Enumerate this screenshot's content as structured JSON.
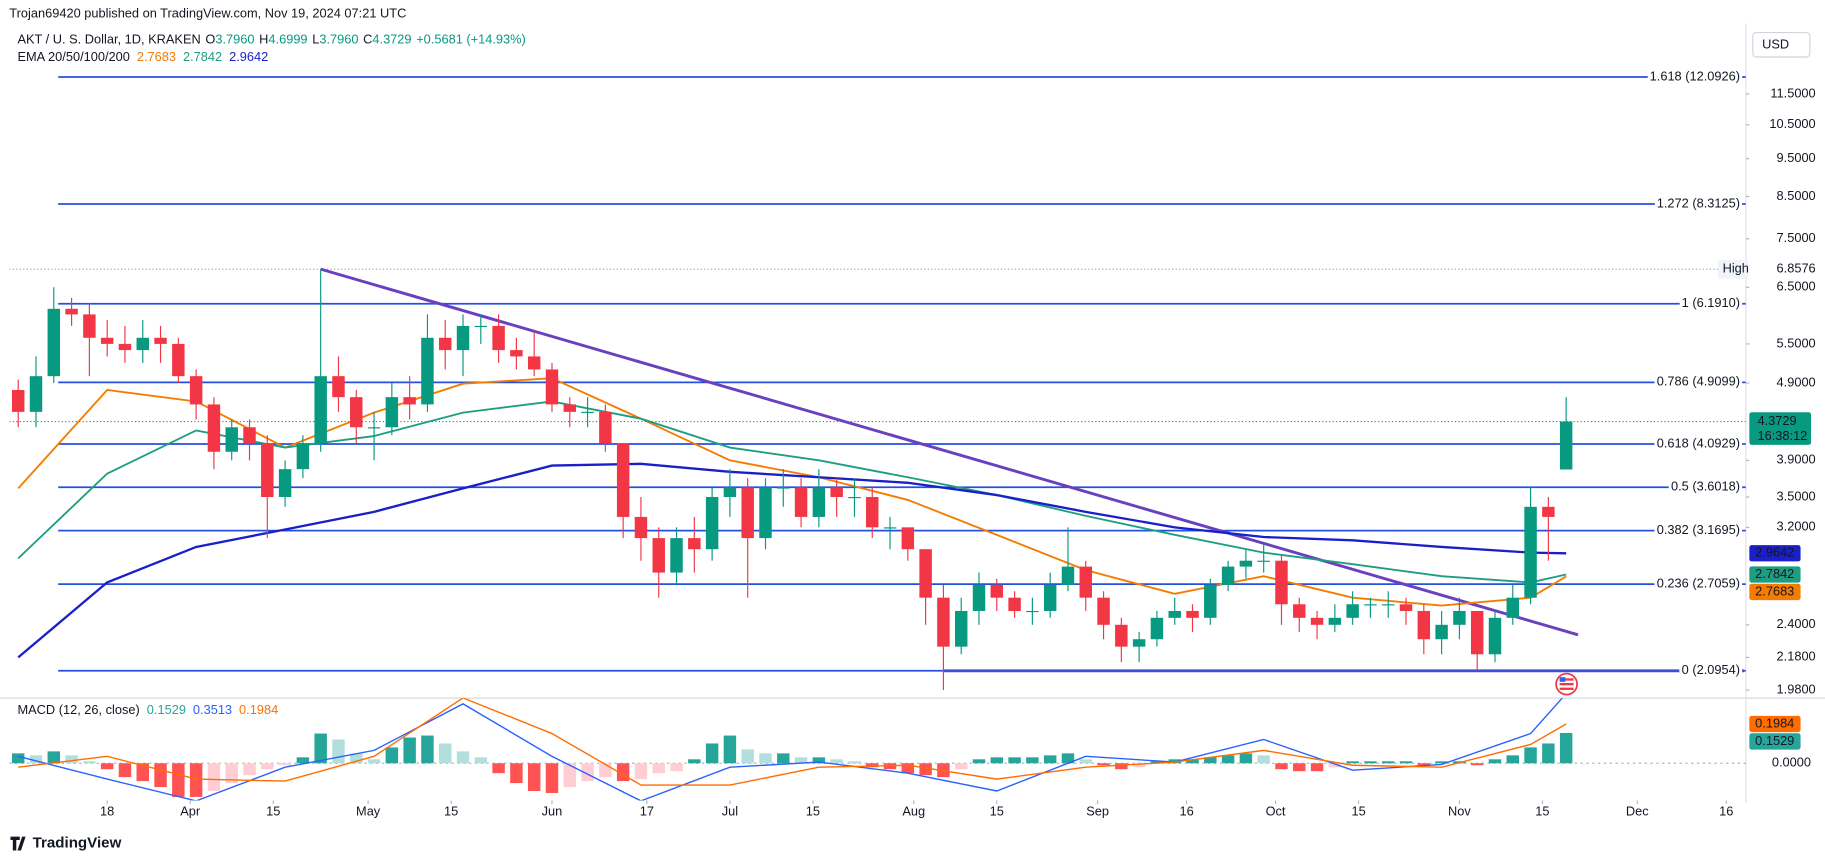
{
  "chart_data": {
    "type": "candlestick",
    "publisher": "Trojan69420 published on TradingView.com, Nov 19, 2024 07:21 UTC",
    "title": "AKT / U. S. Dollar, 1D, KRAKEN",
    "ohlc_legend": [
      {
        "key": "O",
        "value": "3.7960"
      },
      {
        "key": "H",
        "value": "4.6999"
      },
      {
        "key": "L",
        "value": "3.7960"
      },
      {
        "key": "C",
        "value": "4.3729"
      }
    ],
    "change": "+0.5681 (+14.93%)",
    "ema_label": "EMA 20/50/100/200",
    "currency": "USD",
    "countdown": "16:38:12",
    "high_label": "High",
    "high": 6.8576,
    "log_scale": true,
    "up_color": "#089981",
    "down_color": "#f23645",
    "xlim": [
      0.5,
      293.3
    ],
    "ylim": [
      1.933,
      13.93
    ],
    "xticks": [
      {
        "value": 17,
        "label": "18"
      },
      {
        "value": 31,
        "label": "Apr"
      },
      {
        "value": 45,
        "label": "15"
      },
      {
        "value": 61,
        "label": "May"
      },
      {
        "value": 75,
        "label": "15"
      },
      {
        "value": 92,
        "label": "Jun"
      },
      {
        "value": 108,
        "label": "17"
      },
      {
        "value": 122,
        "label": "Jul"
      },
      {
        "value": 136,
        "label": "15"
      },
      {
        "value": 153,
        "label": "Aug"
      },
      {
        "value": 167,
        "label": "15"
      },
      {
        "value": 184,
        "label": "Sep"
      },
      {
        "value": 199,
        "label": "16"
      },
      {
        "value": 214,
        "label": "Oct"
      },
      {
        "value": 228,
        "label": "15"
      },
      {
        "value": 245,
        "label": "Nov"
      },
      {
        "value": 259,
        "label": "15"
      },
      {
        "value": 275,
        "label": "Dec"
      },
      {
        "value": 290,
        "label": "16"
      }
    ],
    "yticks": [
      {
        "value": 11.5,
        "label": "11.5000"
      },
      {
        "value": 10.5,
        "label": "10.5000"
      },
      {
        "value": 9.5,
        "label": "9.5000"
      },
      {
        "value": 8.5,
        "label": "8.5000"
      },
      {
        "value": 7.5,
        "label": "7.5000"
      },
      {
        "value": 6.5,
        "label": "6.5000"
      },
      {
        "value": 5.5,
        "label": "5.5000"
      },
      {
        "value": 4.9,
        "label": "4.9000"
      },
      {
        "value": 3.9,
        "label": "3.9000"
      },
      {
        "value": 3.5,
        "label": "3.5000"
      },
      {
        "value": 3.2,
        "label": "3.2000"
      },
      {
        "value": 2.4,
        "label": "2.4000"
      },
      {
        "value": 2.18,
        "label": "2.1800"
      },
      {
        "value": 1.98,
        "label": "1.9800"
      }
    ],
    "fib_color": "#2450e0",
    "fib_levels": [
      {
        "value": 12.0926,
        "label": "1.618 (12.0926)"
      },
      {
        "value": 8.3125,
        "label": "1.272 (8.3125)"
      },
      {
        "value": 6.191,
        "label": "1 (6.1910)"
      },
      {
        "value": 4.9099,
        "label": "0.786 (4.9099)"
      },
      {
        "value": 4.0929,
        "label": "0.618 (4.0929)"
      },
      {
        "value": 3.6018,
        "label": "0.5 (3.6018)"
      },
      {
        "value": 3.1695,
        "label": "0.382 (3.1695)"
      },
      {
        "value": 2.7059,
        "label": "0.236 (2.7059)"
      },
      {
        "value": 2.0954,
        "label": "0 (2.0954)"
      }
    ],
    "trendline": {
      "color": "#6a3fc0",
      "x": [
        53,
        265
      ],
      "values": [
        6.8576,
        2.33
      ]
    },
    "support": {
      "color": "#3d4fd6",
      "x": [
        158,
        293
      ],
      "values": [
        2.0954,
        2.0954
      ]
    },
    "x": [
      2,
      5,
      8,
      11,
      14,
      17,
      20,
      23,
      26,
      29,
      32,
      35,
      38,
      41,
      44,
      47,
      50,
      53,
      56,
      59,
      62,
      65,
      68,
      71,
      74,
      77,
      80,
      83,
      86,
      89,
      92,
      95,
      98,
      101,
      104,
      107,
      110,
      113,
      116,
      119,
      122,
      125,
      128,
      131,
      134,
      137,
      140,
      143,
      146,
      149,
      152,
      155,
      158,
      161,
      164,
      167,
      170,
      173,
      176,
      179,
      182,
      185,
      188,
      191,
      194,
      197,
      200,
      203,
      206,
      209,
      212,
      215,
      218,
      221,
      224,
      227,
      230,
      233,
      236,
      239,
      242,
      245,
      248,
      251,
      254,
      257,
      260,
      263
    ],
    "candles": [
      [
        4.8,
        4.95,
        4.3,
        4.5
      ],
      [
        4.5,
        5.3,
        4.3,
        5.0
      ],
      [
        5.0,
        6.5,
        4.9,
        6.1
      ],
      [
        6.1,
        6.3,
        5.8,
        6.0
      ],
      [
        6.0,
        6.2,
        5.0,
        5.6
      ],
      [
        5.6,
        5.9,
        5.3,
        5.5
      ],
      [
        5.5,
        5.8,
        5.2,
        5.4
      ],
      [
        5.4,
        5.9,
        5.2,
        5.6
      ],
      [
        5.6,
        5.8,
        5.2,
        5.5
      ],
      [
        5.5,
        5.6,
        4.9,
        5.0
      ],
      [
        5.0,
        5.1,
        4.4,
        4.6
      ],
      [
        4.6,
        4.7,
        3.8,
        4.0
      ],
      [
        4.0,
        4.4,
        3.9,
        4.3
      ],
      [
        4.3,
        4.4,
        3.9,
        4.1
      ],
      [
        4.1,
        4.2,
        3.1,
        3.5
      ],
      [
        3.5,
        3.9,
        3.4,
        3.8
      ],
      [
        3.8,
        4.2,
        3.7,
        4.1
      ],
      [
        4.1,
        6.8576,
        4.0,
        5.0
      ],
      [
        5.0,
        5.3,
        4.5,
        4.7
      ],
      [
        4.7,
        4.8,
        4.1,
        4.3
      ],
      [
        4.3,
        4.5,
        3.9,
        4.3
      ],
      [
        4.3,
        4.9,
        4.2,
        4.7
      ],
      [
        4.7,
        5.0,
        4.4,
        4.6
      ],
      [
        4.6,
        6.0,
        4.5,
        5.6
      ],
      [
        5.6,
        5.9,
        5.1,
        5.4
      ],
      [
        5.4,
        6.0,
        5.0,
        5.8
      ],
      [
        5.8,
        6.0,
        5.5,
        5.8
      ],
      [
        5.8,
        6.0,
        5.2,
        5.4
      ],
      [
        5.4,
        5.6,
        5.1,
        5.3
      ],
      [
        5.3,
        5.7,
        5.0,
        5.1
      ],
      [
        5.1,
        5.2,
        4.5,
        4.6
      ],
      [
        4.6,
        4.7,
        4.3,
        4.5
      ],
      [
        4.5,
        4.7,
        4.3,
        4.5
      ],
      [
        4.5,
        4.6,
        4.0,
        4.1
      ],
      [
        4.1,
        4.1,
        3.1,
        3.3
      ],
      [
        3.3,
        3.5,
        2.9,
        3.1
      ],
      [
        3.1,
        3.2,
        2.6,
        2.8
      ],
      [
        2.8,
        3.2,
        2.7,
        3.1
      ],
      [
        3.1,
        3.3,
        2.8,
        3.0
      ],
      [
        3.0,
        3.6,
        2.9,
        3.5
      ],
      [
        3.5,
        3.8,
        3.3,
        3.6
      ],
      [
        3.6,
        3.7,
        2.6,
        3.1
      ],
      [
        3.1,
        3.7,
        3.0,
        3.6
      ],
      [
        3.6,
        3.8,
        3.4,
        3.6
      ],
      [
        3.6,
        3.7,
        3.2,
        3.3
      ],
      [
        3.3,
        3.8,
        3.2,
        3.6
      ],
      [
        3.6,
        3.7,
        3.3,
        3.5
      ],
      [
        3.5,
        3.7,
        3.3,
        3.5
      ],
      [
        3.5,
        3.6,
        3.1,
        3.2
      ],
      [
        3.2,
        3.3,
        3.0,
        3.2
      ],
      [
        3.2,
        3.2,
        2.9,
        3.0
      ],
      [
        3.0,
        3.0,
        2.4,
        2.6
      ],
      [
        2.6,
        2.7,
        1.98,
        2.25
      ],
      [
        2.25,
        2.6,
        2.2,
        2.5
      ],
      [
        2.5,
        2.8,
        2.4,
        2.7
      ],
      [
        2.7,
        2.75,
        2.5,
        2.6
      ],
      [
        2.6,
        2.65,
        2.45,
        2.5
      ],
      [
        2.5,
        2.6,
        2.4,
        2.5
      ],
      [
        2.5,
        2.8,
        2.45,
        2.7
      ],
      [
        2.7,
        3.2,
        2.65,
        2.85
      ],
      [
        2.85,
        2.9,
        2.5,
        2.6
      ],
      [
        2.6,
        2.65,
        2.3,
        2.4
      ],
      [
        2.4,
        2.45,
        2.15,
        2.25
      ],
      [
        2.25,
        2.35,
        2.15,
        2.3
      ],
      [
        2.3,
        2.5,
        2.25,
        2.45
      ],
      [
        2.45,
        2.6,
        2.4,
        2.5
      ],
      [
        2.5,
        2.55,
        2.35,
        2.45
      ],
      [
        2.45,
        2.75,
        2.4,
        2.7
      ],
      [
        2.7,
        2.9,
        2.65,
        2.85
      ],
      [
        2.85,
        3.0,
        2.75,
        2.9
      ],
      [
        2.9,
        3.05,
        2.8,
        2.9
      ],
      [
        2.9,
        2.95,
        2.4,
        2.55
      ],
      [
        2.55,
        2.6,
        2.35,
        2.45
      ],
      [
        2.45,
        2.5,
        2.3,
        2.4
      ],
      [
        2.4,
        2.55,
        2.35,
        2.45
      ],
      [
        2.45,
        2.65,
        2.4,
        2.55
      ],
      [
        2.55,
        2.6,
        2.45,
        2.55
      ],
      [
        2.55,
        2.65,
        2.45,
        2.55
      ],
      [
        2.55,
        2.6,
        2.4,
        2.5
      ],
      [
        2.5,
        2.55,
        2.2,
        2.3
      ],
      [
        2.3,
        2.5,
        2.2,
        2.4
      ],
      [
        2.4,
        2.6,
        2.3,
        2.5
      ],
      [
        2.5,
        2.5,
        2.1,
        2.2
      ],
      [
        2.2,
        2.5,
        2.15,
        2.45
      ],
      [
        2.45,
        2.7,
        2.4,
        2.6
      ],
      [
        2.6,
        3.6,
        2.55,
        3.4
      ],
      [
        3.4,
        3.5,
        2.9,
        3.3
      ],
      [
        3.796,
        4.6999,
        3.796,
        4.3729
      ]
    ],
    "ema_x": [
      2,
      17,
      32,
      47,
      62,
      77,
      92,
      107,
      122,
      137,
      152,
      167,
      182,
      197,
      212,
      227,
      242,
      257,
      263
    ],
    "ema": [
      {
        "color": "#f57c00",
        "values": [
          3.59,
          4.8,
          4.64,
          4.05,
          4.49,
          4.89,
          4.97,
          4.41,
          3.9,
          3.71,
          3.47,
          3.13,
          2.82,
          2.63,
          2.77,
          2.6,
          2.54,
          2.6,
          2.7683
        ]
      },
      {
        "color": "#1e9e80",
        "values": [
          2.92,
          3.75,
          4.26,
          4.05,
          4.19,
          4.49,
          4.64,
          4.41,
          4.05,
          3.9,
          3.71,
          3.52,
          3.31,
          3.13,
          2.97,
          2.87,
          2.77,
          2.72,
          2.7842
        ]
      },
      {
        "color": "#1a1fc8",
        "values": [
          2.18,
          2.72,
          3.02,
          3.18,
          3.35,
          3.59,
          3.84,
          3.86,
          3.77,
          3.71,
          3.65,
          3.52,
          3.35,
          3.2,
          3.11,
          3.08,
          3.02,
          2.97,
          2.9642
        ]
      }
    ],
    "macd": {
      "label": "MACD (12, 26, close)",
      "ylim": [
        -0.188,
        0.329
      ],
      "yticks": [
        {
          "value": 0,
          "label": "0.0000"
        }
      ],
      "histogram_color": "#26a69a",
      "histogram": [
        0.05,
        0.04,
        0.06,
        0.04,
        0.01,
        -0.03,
        -0.07,
        -0.09,
        -0.12,
        -0.17,
        -0.17,
        -0.14,
        -0.1,
        -0.06,
        -0.03,
        -0.01,
        0.03,
        0.15,
        0.12,
        0.05,
        0.02,
        0.08,
        0.13,
        0.14,
        0.1,
        0.06,
        0.03,
        -0.05,
        -0.1,
        -0.14,
        -0.15,
        -0.12,
        -0.09,
        -0.07,
        -0.09,
        -0.08,
        -0.05,
        -0.04,
        0.02,
        0.1,
        0.14,
        0.07,
        0.05,
        0.05,
        0.03,
        0.03,
        0.02,
        0.01,
        -0.02,
        -0.03,
        -0.05,
        -0.06,
        -0.07,
        -0.03,
        0.02,
        0.03,
        0.03,
        0.03,
        0.04,
        0.05,
        0.02,
        -0.01,
        -0.03,
        -0.02,
        0.01,
        0.02,
        0.02,
        0.03,
        0.04,
        0.05,
        0.04,
        -0.03,
        -0.04,
        -0.04,
        -0.02,
        0.01,
        0.01,
        0.01,
        0.01,
        -0.01,
        0.01,
        0.01,
        -0.01,
        0.02,
        0.04,
        0.08,
        0.1,
        0.1529
      ],
      "macd_color": "#2962ff",
      "macd": [
        0.035,
        -0.08,
        -0.19,
        -0.02,
        0.065,
        0.3,
        0.035,
        -0.19,
        -0.02,
        0.006,
        -0.05,
        -0.14,
        0.035,
        0.006,
        0.12,
        -0.035,
        -0.006,
        0.15,
        0.3513
      ],
      "signal_color": "#ff6d00",
      "signal": [
        -0.02,
        0.035,
        -0.08,
        -0.09,
        0.035,
        0.33,
        0.15,
        -0.11,
        -0.11,
        -0.02,
        -0.01,
        -0.08,
        -0.02,
        0.006,
        0.065,
        -0.01,
        -0.02,
        0.095,
        0.1984
      ]
    },
    "brand": "TradingView"
  }
}
